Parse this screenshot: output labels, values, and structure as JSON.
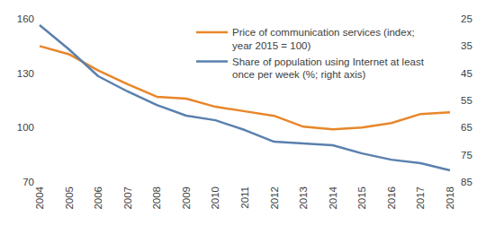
{
  "chart_data": {
    "type": "line",
    "categories": [
      "2004",
      "2005",
      "2006",
      "2007",
      "2008",
      "2009",
      "2010",
      "2011",
      "2012",
      "2013",
      "2014",
      "2015",
      "2016",
      "2017",
      "2018"
    ],
    "series": [
      {
        "name": "Price of communication services (index; year 2015 = 100)",
        "color": "#e8862a",
        "values": [
          145,
          140.5,
          131.5,
          124,
          117,
          116,
          111.5,
          109,
          106.5,
          100.5,
          99,
          100,
          102.5,
          107.5,
          108.5
        ]
      },
      {
        "name": "Share of population using Internet at least once per week (%; right axis)",
        "color": "#5a80ae",
        "axis": "y2",
        "values": [
          27.3,
          36.2,
          46.1,
          51.7,
          56.7,
          60.6,
          62.3,
          65.9,
          70.2,
          70.8,
          71.5,
          74.5,
          76.8,
          78.1,
          80.7
        ]
      }
    ],
    "ylim": [
      70,
      160
    ],
    "yticks": [
      70,
      100,
      130,
      160
    ],
    "y2lim": [
      85,
      25
    ],
    "y2ticks": [
      25,
      35,
      45,
      55,
      65,
      75,
      85
    ],
    "grid": false,
    "legend": "top-right"
  }
}
